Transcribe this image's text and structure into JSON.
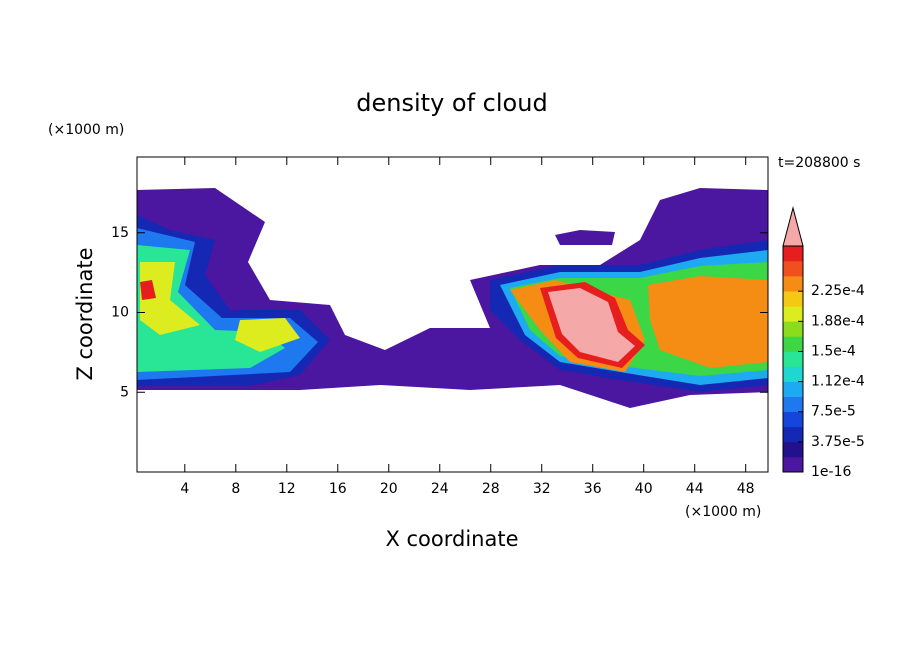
{
  "chart_data": {
    "type": "contour",
    "title": "density of cloud",
    "x_label": "X coordinate",
    "y_label": "Z coordinate",
    "x_unit": "(×1000 m)",
    "y_unit": "(×1000 m)",
    "annotation": "t=208800 s",
    "xlim": [
      0.25,
      49.75
    ],
    "ylim": [
      0,
      19.75
    ],
    "xticks": [
      4,
      8,
      12,
      16,
      20,
      24,
      28,
      32,
      36,
      40,
      44,
      48
    ],
    "yticks": [
      5,
      10,
      15
    ],
    "colorbar": {
      "ticks": [
        1e-16,
        {
          "value": 3.75e-05,
          "label": "3.75e-5"
        },
        {
          "value": 7.5e-05,
          "label": "7.5e-5"
        },
        {
          "value": 0.000112,
          "label": "1.12e-4"
        },
        {
          "value": 0.00015,
          "label": "1.5e-4"
        },
        {
          "value": 0.000188,
          "label": "1.88e-4"
        },
        {
          "value": 0.000225,
          "label": "2.25e-4"
        }
      ],
      "colors": [
        "#4b16a0",
        "#22108c",
        "#1428b4",
        "#1446dc",
        "#1e78f0",
        "#1eaaf0",
        "#1ed7d2",
        "#28e696",
        "#3cd746",
        "#8cdc1e",
        "#dcec1e",
        "#f5c814",
        "#f58c14",
        "#f0501e",
        "#e61e1e"
      ],
      "extend_color": "#f4a8a8"
    }
  }
}
